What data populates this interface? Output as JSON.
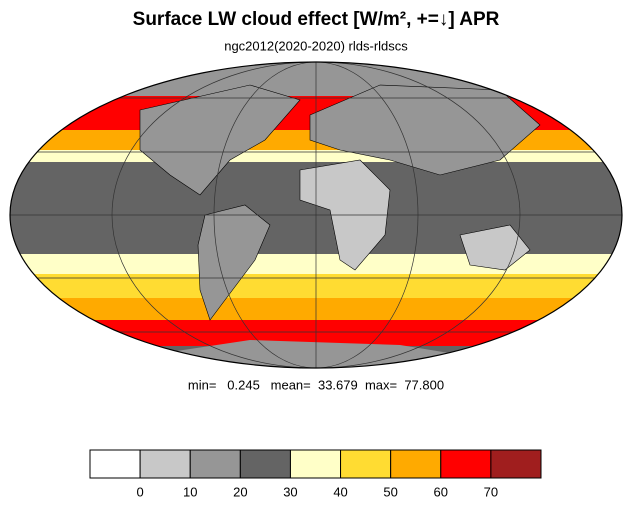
{
  "title": "Surface LW cloud effect [W/m², +=↓]  APR",
  "subtitle": "ngc2012(2020-2020)   rlds-rldscs",
  "stats": "min=   0.245   mean=  33.679  max=  77.800",
  "colorbar": {
    "colors": [
      "#ffffff",
      "#c8c8c8",
      "#969696",
      "#646464",
      "#ffffc8",
      "#ffdc32",
      "#ffaa00",
      "#ff0000",
      "#a01e1e"
    ],
    "ticks": [
      0,
      10,
      20,
      30,
      40,
      50,
      60,
      70
    ]
  }
}
